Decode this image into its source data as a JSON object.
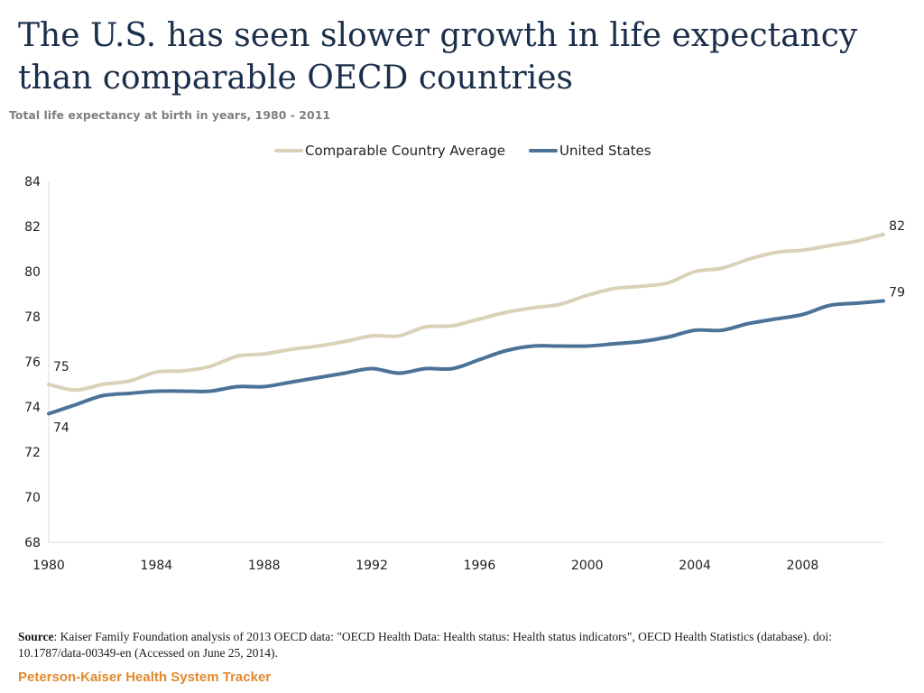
{
  "title": "The U.S. has seen slower growth in life expectancy than comparable OECD countries",
  "subtitle": "Total life expectancy at birth in years, 1980 - 2011",
  "source": {
    "label": "Source",
    "text": ": Kaiser Family Foundation analysis of 2013 OECD data: \"OECD Health Data: Health status: Health status indicators\", OECD Health Statistics (database). doi: 10.1787/data-00349-en (Accessed on June 25, 2014)."
  },
  "brand": "Peterson-Kaiser Health System Tracker",
  "colors": {
    "comparable": "#d9d2b8",
    "us": "#4a7397",
    "axis": "#d9d9d9"
  },
  "chart_data": {
    "type": "line",
    "title": "The U.S. has seen slower growth in life expectancy than comparable OECD countries",
    "subtitle": "Total life expectancy at birth in years, 1980 - 2011",
    "xlabel": "",
    "ylabel": "",
    "xlim": [
      1980,
      2011
    ],
    "ylim": [
      68,
      84
    ],
    "yticks": [
      68,
      70,
      72,
      74,
      76,
      78,
      80,
      82,
      84
    ],
    "xticks": [
      1980,
      1984,
      1988,
      1992,
      1996,
      2000,
      2004,
      2008
    ],
    "legend_position": "top-center",
    "grid": false,
    "x": [
      1980,
      1981,
      1982,
      1983,
      1984,
      1985,
      1986,
      1987,
      1988,
      1989,
      1990,
      1991,
      1992,
      1993,
      1994,
      1995,
      1996,
      1997,
      1998,
      1999,
      2000,
      2001,
      2002,
      2003,
      2004,
      2005,
      2006,
      2007,
      2008,
      2009,
      2010,
      2011
    ],
    "series": [
      {
        "name": "Comparable Country Average",
        "color": "#d9d2b8",
        "values": [
          75.0,
          74.75,
          75.0,
          75.15,
          75.55,
          75.6,
          75.8,
          76.25,
          76.35,
          76.55,
          76.7,
          76.9,
          77.15,
          77.15,
          77.55,
          77.6,
          77.9,
          78.2,
          78.4,
          78.55,
          78.95,
          79.25,
          79.35,
          79.5,
          80.0,
          80.15,
          80.55,
          80.85,
          80.95,
          81.15,
          81.35,
          81.65
        ],
        "end_label": "82",
        "start_label": "75"
      },
      {
        "name": "United States",
        "color": "#4a7397",
        "values": [
          73.7,
          74.1,
          74.5,
          74.6,
          74.7,
          74.7,
          74.7,
          74.9,
          74.9,
          75.1,
          75.3,
          75.5,
          75.7,
          75.5,
          75.7,
          75.7,
          76.1,
          76.5,
          76.7,
          76.7,
          76.7,
          76.8,
          76.9,
          77.1,
          77.4,
          77.4,
          77.7,
          77.9,
          78.1,
          78.5,
          78.6,
          78.7
        ],
        "end_label": "79",
        "start_label": "74"
      }
    ]
  }
}
